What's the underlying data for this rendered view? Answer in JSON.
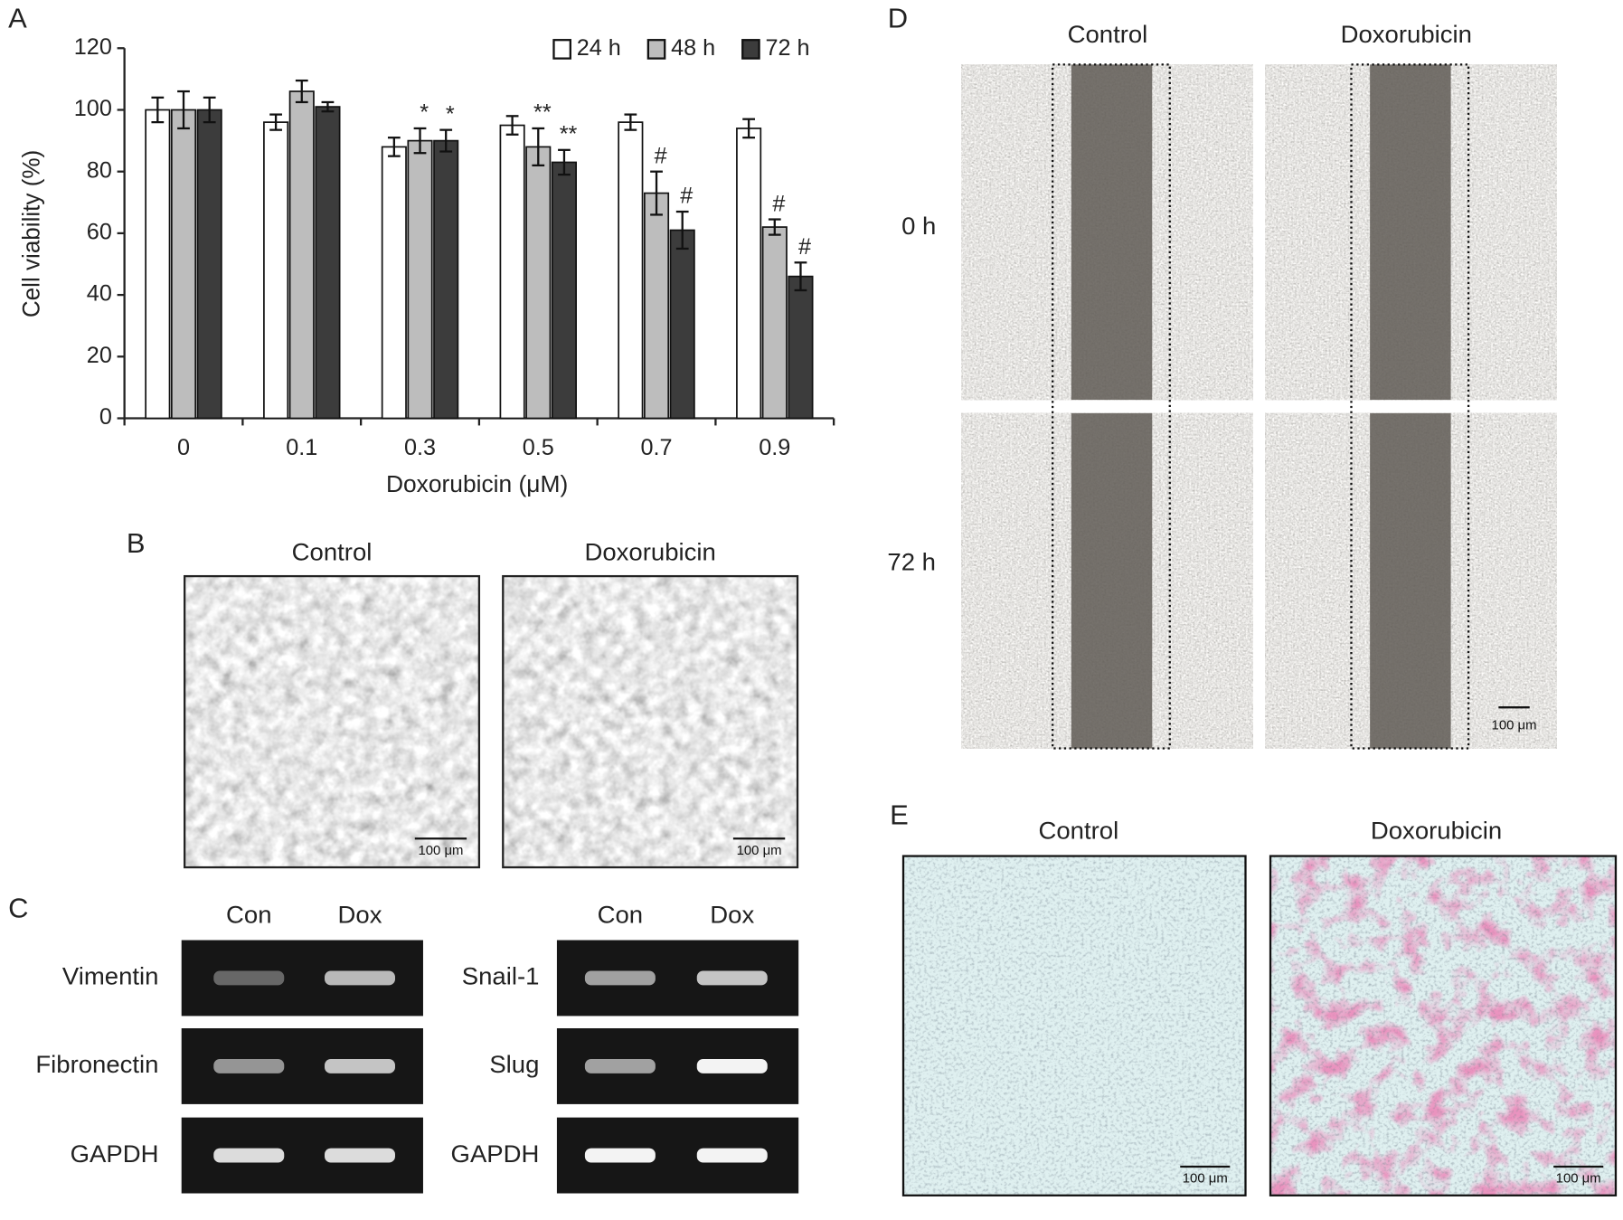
{
  "chart_data": {
    "type": "bar",
    "panel_label": "A",
    "y_label": "Cell viability (%)",
    "x_label": "Doxorubicin (μM)",
    "categories": [
      "0",
      "0.1",
      "0.3",
      "0.5",
      "0.7",
      "0.9"
    ],
    "series": [
      {
        "name": "24 h",
        "color": "#ffffff",
        "values": [
          100,
          96,
          88,
          95,
          96,
          94
        ],
        "errors": [
          4,
          2.5,
          3,
          3,
          2.5,
          3
        ]
      },
      {
        "name": "48 h",
        "color": "#bdbdbd",
        "values": [
          100,
          106,
          90,
          88,
          73,
          62
        ],
        "errors": [
          6,
          3.5,
          4,
          6,
          7,
          2.5
        ],
        "markers": [
          null,
          null,
          "*",
          "**",
          "#",
          "#"
        ]
      },
      {
        "name": "72 h",
        "color": "#3c3c3c",
        "values": [
          100,
          101,
          90,
          83,
          61,
          46
        ],
        "errors": [
          4,
          1.5,
          3.5,
          4,
          6,
          4.5
        ],
        "markers": [
          null,
          null,
          "*",
          "**",
          "#",
          "#"
        ]
      }
    ],
    "ylim": [
      0,
      120
    ],
    "yticks": [
      0,
      20,
      40,
      60,
      80,
      100,
      120
    ],
    "legend": "top-right"
  },
  "panel_b": {
    "label": "B",
    "columns": [
      "Control",
      "Doxorubicin"
    ],
    "scale_bar": "100 μm"
  },
  "panel_c": {
    "label": "C",
    "left": {
      "columns": [
        "Con",
        "Dox"
      ],
      "rows": [
        "Vimentin",
        "Fibronectin",
        "GAPDH"
      ]
    },
    "right": {
      "columns": [
        "Con",
        "Dox"
      ],
      "rows": [
        "Snail-1",
        "Slug",
        "GAPDH"
      ]
    }
  },
  "panel_d": {
    "label": "D",
    "columns": [
      "Control",
      "Doxorubicin"
    ],
    "rows": [
      "0 h",
      "72 h"
    ],
    "scale_bar": "100 μm"
  },
  "panel_e": {
    "label": "E",
    "columns": [
      "Control",
      "Doxorubicin"
    ],
    "scale_bar": "100 μm"
  }
}
